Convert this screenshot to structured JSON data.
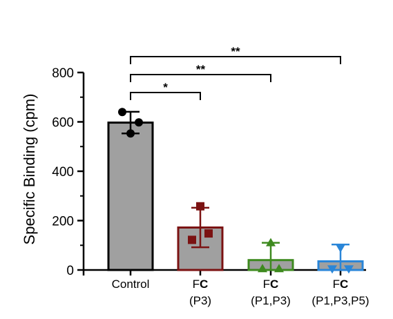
{
  "chart_data": {
    "type": "bar",
    "title": "",
    "xlabel": "",
    "ylabel": "Specific Binding (cpm)",
    "ylim": [
      0,
      800
    ],
    "yticks": [
      0,
      200,
      400,
      600,
      800
    ],
    "grid": false,
    "legend": "none",
    "categories": [
      {
        "id": "control",
        "line1": "Control",
        "line2": "",
        "prefix": "",
        "bold": ""
      },
      {
        "id": "fc-p3",
        "line1": "",
        "line2": "(P3)",
        "prefix": "F",
        "bold": "C"
      },
      {
        "id": "fc-p1-p3",
        "line1": "",
        "line2": "(P1,P3)",
        "prefix": "F",
        "bold": "C"
      },
      {
        "id": "fc-p1-p3-p5",
        "line1": "",
        "line2": "(P1,P3,P5)",
        "prefix": "F",
        "bold": "C"
      }
    ],
    "values": [
      597,
      172,
      40,
      35
    ],
    "error": [
      44,
      80,
      70,
      68
    ],
    "points": [
      [
        640,
        598,
        553
      ],
      [
        258,
        148,
        122
      ],
      [
        110,
        5,
        5
      ],
      [
        90,
        5,
        5
      ]
    ],
    "point_shapes": [
      "circle",
      "square",
      "triangle-up",
      "triangle-down"
    ],
    "colors": {
      "bar_fill": "#a0a0a0",
      "edges": [
        "#000000",
        "#7b1212",
        "#3e8a1f",
        "#2a86d8"
      ]
    },
    "significance": [
      {
        "from": 0,
        "to": 1,
        "label": "*"
      },
      {
        "from": 0,
        "to": 2,
        "label": "**"
      },
      {
        "from": 0,
        "to": 3,
        "label": "**"
      }
    ]
  }
}
